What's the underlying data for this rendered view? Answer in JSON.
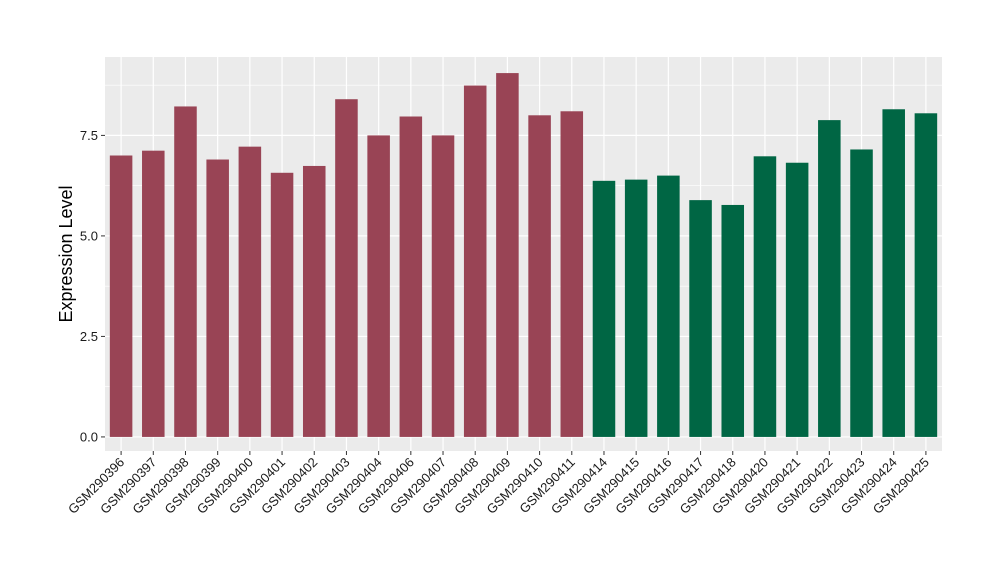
{
  "chart_data": {
    "type": "bar",
    "title": "",
    "xlabel": "",
    "ylabel": "Expression Level",
    "ylim": [
      -0.35,
      9.45
    ],
    "yticks": [
      0.0,
      2.5,
      5.0,
      7.5
    ],
    "ytick_labels": [
      "0.0",
      "2.5",
      "5.0",
      "7.5"
    ],
    "grid": true,
    "legend": "none",
    "categories": [
      "GSM290396",
      "GSM290397",
      "GSM290398",
      "GSM290399",
      "GSM290400",
      "GSM290401",
      "GSM290402",
      "GSM290403",
      "GSM290404",
      "GSM290406",
      "GSM290407",
      "GSM290408",
      "GSM290409",
      "GSM290410",
      "GSM290411",
      "GSM290414",
      "GSM290415",
      "GSM290416",
      "GSM290417",
      "GSM290418",
      "GSM290420",
      "GSM290421",
      "GSM290422",
      "GSM290423",
      "GSM290424",
      "GSM290425"
    ],
    "values": [
      7.0,
      7.12,
      8.22,
      6.9,
      7.22,
      6.57,
      6.74,
      8.4,
      7.5,
      7.97,
      7.5,
      8.74,
      9.05,
      8.0,
      8.1,
      6.37,
      6.4,
      6.5,
      5.89,
      5.77,
      6.98,
      6.82,
      7.88,
      7.15,
      8.15,
      8.05
    ],
    "bar_colors": [
      "#994455",
      "#994455",
      "#994455",
      "#994455",
      "#994455",
      "#994455",
      "#994455",
      "#994455",
      "#994455",
      "#994455",
      "#994455",
      "#994455",
      "#994455",
      "#994455",
      "#994455",
      "#006644",
      "#006644",
      "#006644",
      "#006644",
      "#006644",
      "#006644",
      "#006644",
      "#006644",
      "#006644",
      "#006644",
      "#006644"
    ],
    "panel_background": "#ebebeb",
    "grid_color": "#ffffff"
  }
}
